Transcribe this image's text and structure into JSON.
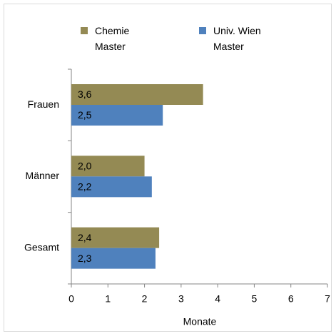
{
  "chart_data": {
    "type": "barh",
    "categories": [
      "Frauen",
      "Männer",
      "Gesamt"
    ],
    "series": [
      {
        "name": "Chemie Master",
        "color": "#948a54",
        "values": [
          3.6,
          2.0,
          2.4
        ],
        "value_labels": [
          "3,6",
          "2,0",
          "2,4"
        ]
      },
      {
        "name": "Univ. Wien Master",
        "color": "#4f81bd",
        "values": [
          2.5,
          2.2,
          2.3
        ],
        "value_labels": [
          "2,5",
          "2,2",
          "2,3"
        ]
      }
    ],
    "xlabel": "Monate",
    "xlim": [
      0,
      7
    ],
    "xticks": [
      0,
      1,
      2,
      3,
      4,
      5,
      6,
      7
    ],
    "legend": "top",
    "grid": false
  }
}
